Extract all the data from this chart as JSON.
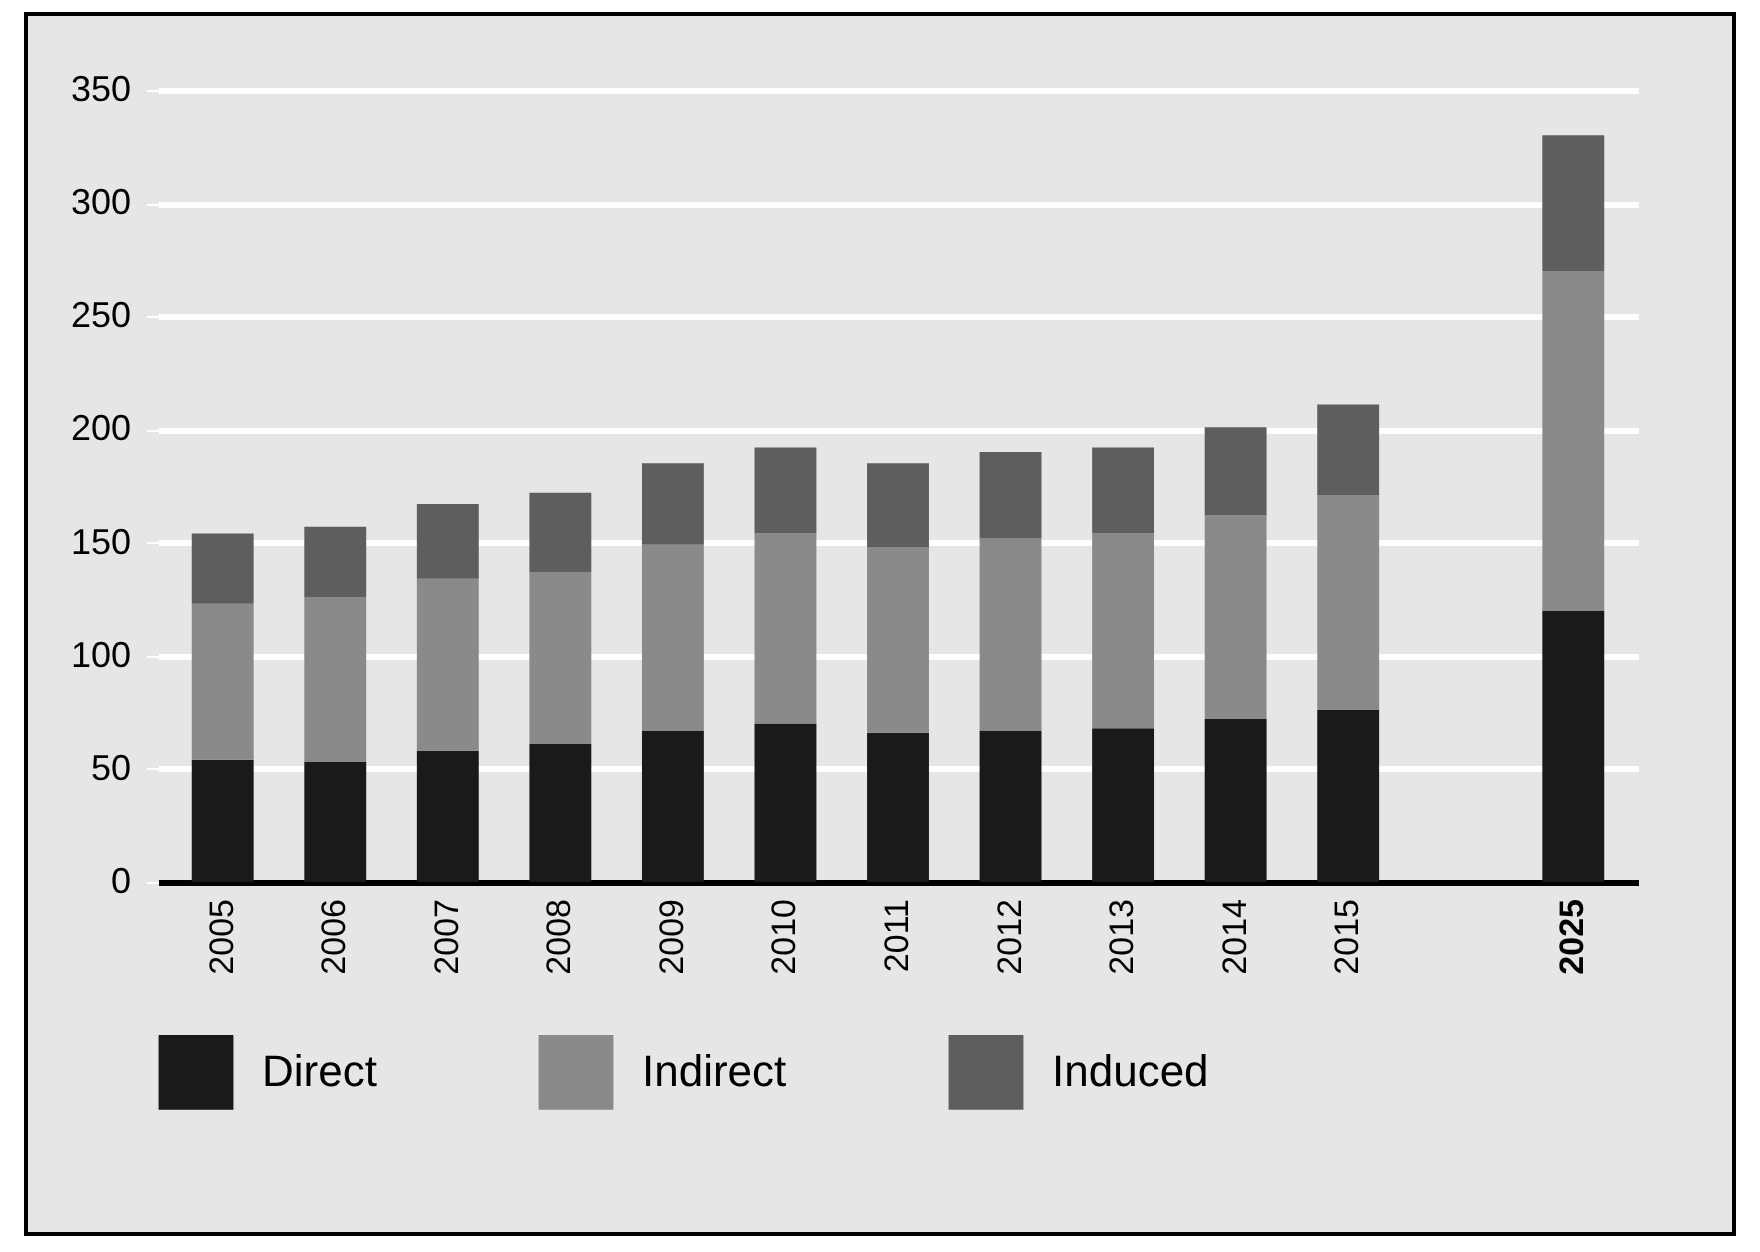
{
  "chart_data": {
    "type": "bar",
    "stacked": true,
    "categories": [
      "2005",
      "2006",
      "2007",
      "2008",
      "2009",
      "2010",
      "2011",
      "2012",
      "2013",
      "2014",
      "2015",
      null,
      "2025"
    ],
    "series": [
      {
        "name": "Direct",
        "color": "#1a1a1a",
        "values": [
          54,
          53,
          58,
          61,
          67,
          70,
          66,
          67,
          68,
          72,
          76,
          null,
          120
        ]
      },
      {
        "name": "Indirect",
        "color": "#8a8a8a",
        "values": [
          69,
          73,
          76,
          76,
          82,
          84,
          82,
          85,
          86,
          90,
          95,
          null,
          150
        ]
      },
      {
        "name": "Induced",
        "color": "#5e5e5e",
        "values": [
          31,
          31,
          33,
          35,
          36,
          38,
          37,
          38,
          38,
          39,
          40,
          null,
          60
        ]
      }
    ],
    "ylim": [
      0,
      350
    ],
    "yticks": [
      0,
      50,
      100,
      150,
      200,
      250,
      300,
      350
    ],
    "grid": "y",
    "legend": "bottom"
  }
}
